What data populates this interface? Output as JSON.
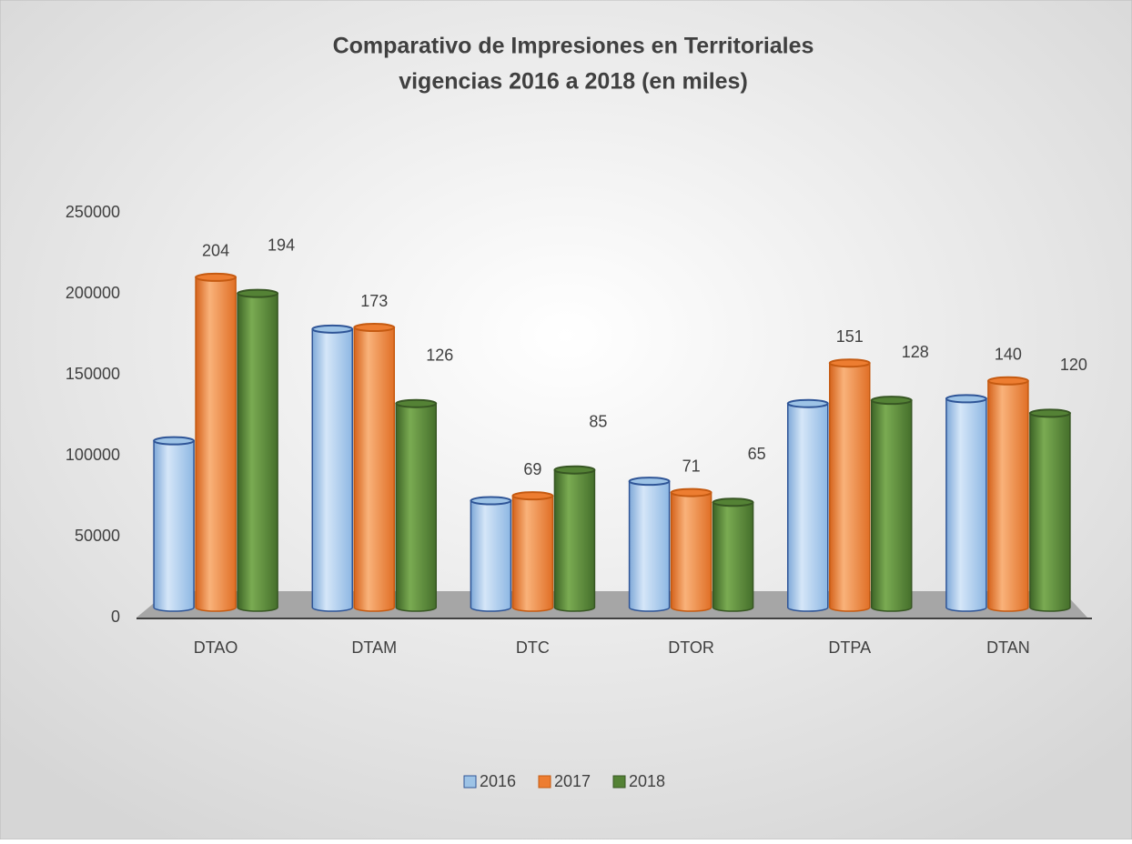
{
  "chart_data": {
    "type": "bar",
    "title": "Comparativo de Impresiones en Territoriales",
    "subtitle": "vigencias  2016 a 2018 (en miles)",
    "categories": [
      "DTAO",
      "DTAM",
      "DTC",
      "DTOR",
      "DTPA",
      "DTAN"
    ],
    "series": [
      {
        "name": "2016",
        "color": "#9dc3e6",
        "values": [
          103000,
          172000,
          66000,
          78000,
          126000,
          129000
        ]
      },
      {
        "name": "2017",
        "color": "#ed7d31",
        "values": [
          204000,
          173000,
          69000,
          71000,
          151000,
          140000
        ],
        "value_labels": [
          "204",
          "173",
          "69",
          "71",
          "151",
          "140"
        ]
      },
      {
        "name": "2018",
        "color": "#548235",
        "values": [
          194000,
          126000,
          85000,
          65000,
          128000,
          120000
        ],
        "value_labels": [
          "194",
          "126",
          "85",
          "65",
          "128",
          "120"
        ]
      }
    ],
    "ylim": [
      0,
      250000
    ],
    "yticks": [
      0,
      50000,
      100000,
      150000,
      200000,
      250000
    ],
    "grid": false,
    "legend": "bottom"
  }
}
